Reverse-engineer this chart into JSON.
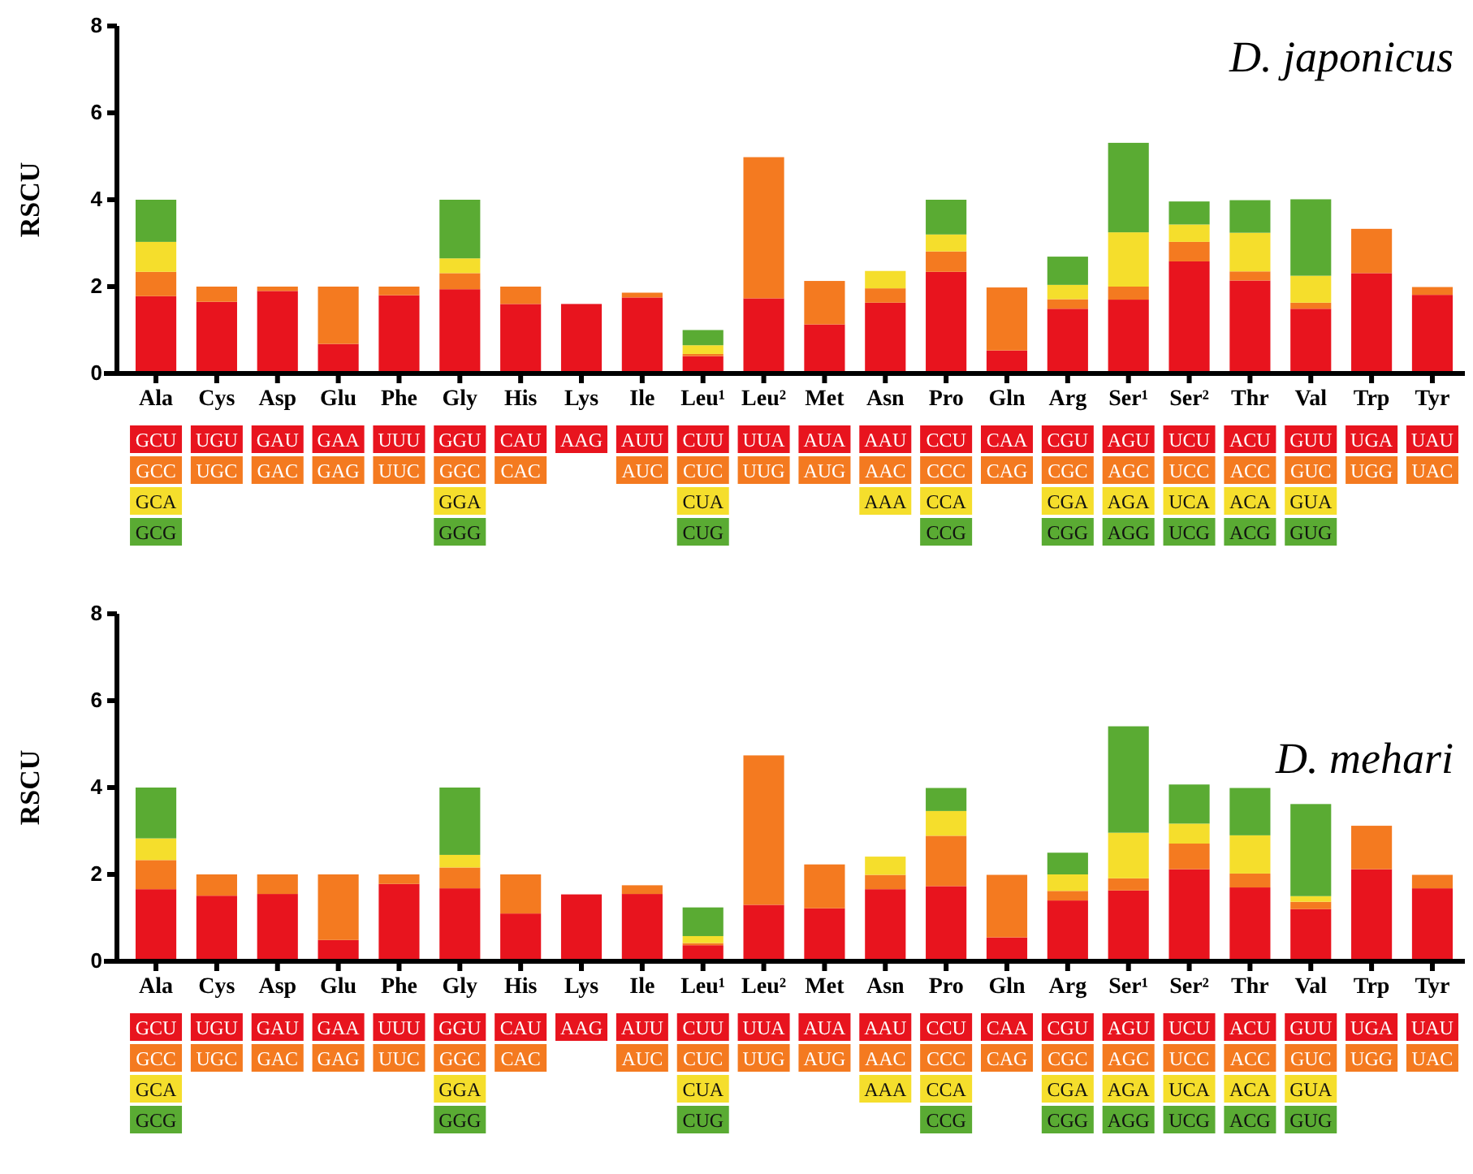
{
  "chart_data": [
    {
      "type": "bar",
      "title": "D. japonicus",
      "ylabel": "RSCU",
      "stacked": true,
      "ylim": [
        0,
        8
      ],
      "yticks": [
        0,
        2,
        4,
        6,
        8
      ],
      "categories": [
        "Ala",
        "Cys",
        "Asp",
        "Glu",
        "Phe",
        "Gly",
        "His",
        "Lys",
        "Ile",
        "Leu¹",
        "Leu²",
        "Met",
        "Asn",
        "Pro",
        "Gln",
        "Arg",
        "Ser¹",
        "Ser²",
        "Thr",
        "Val",
        "Trp",
        "Tyr"
      ],
      "series": [
        {
          "color": "#e8141e",
          "values": [
            1.78,
            1.65,
            1.9,
            0.68,
            1.8,
            1.94,
            1.6,
            1.6,
            1.75,
            0.4,
            1.73,
            1.13,
            1.63,
            2.34,
            0.53,
            1.49,
            1.7,
            2.58,
            2.14,
            1.49,
            2.31,
            1.81
          ]
        },
        {
          "color": "#f47a20",
          "values": [
            0.56,
            0.35,
            0.1,
            1.32,
            0.2,
            0.37,
            0.4,
            null,
            0.11,
            0.05,
            3.25,
            1.0,
            0.33,
            0.47,
            1.45,
            0.22,
            0.3,
            0.45,
            0.21,
            0.14,
            1.02,
            0.18
          ]
        },
        {
          "color": "#f5de2c",
          "values": [
            0.69,
            null,
            null,
            null,
            null,
            0.34,
            null,
            null,
            null,
            0.2,
            null,
            null,
            0.4,
            0.39,
            null,
            0.33,
            1.25,
            0.4,
            0.89,
            0.62,
            null,
            null
          ]
        },
        {
          "color": "#5aab33",
          "values": [
            0.97,
            null,
            null,
            null,
            null,
            1.35,
            null,
            null,
            null,
            0.35,
            null,
            null,
            null,
            0.8,
            null,
            0.65,
            2.06,
            0.53,
            0.75,
            1.76,
            null,
            null
          ]
        }
      ],
      "annotations": [
        "GCU",
        "GCC",
        "GCA",
        "GCG",
        "UGU",
        "UGC",
        "GAU",
        "GAC",
        "GAA",
        "GAG",
        "UUU",
        "UUC",
        "GGU",
        "GGC",
        "GGA",
        "GGG",
        "CAU",
        "CAC",
        "AAG",
        "AUU",
        "AUC",
        "CUU",
        "CUC",
        "CUA",
        "CUG",
        "UUA",
        "UUG",
        "AUA",
        "AUG",
        "AAU",
        "AAC",
        "AAA",
        "CCU",
        "CCC",
        "CCA",
        "CCG",
        "CAA",
        "CAG",
        "CGU",
        "CGC",
        "CGA",
        "CGG",
        "AGU",
        "AGC",
        "AGA",
        "AGG",
        "UCU",
        "UCC",
        "UCA",
        "UCG",
        "ACU",
        "ACC",
        "ACA",
        "ACG",
        "GUU",
        "GUC",
        "GUA",
        "GUG",
        "UGA",
        "UGG",
        "UAU",
        "UAC"
      ]
    },
    {
      "type": "bar",
      "title": "D. mehari",
      "ylabel": "RSCU",
      "stacked": true,
      "ylim": [
        0,
        8
      ],
      "yticks": [
        0,
        2,
        4,
        6,
        8
      ],
      "categories": [
        "Ala",
        "Cys",
        "Asp",
        "Glu",
        "Phe",
        "Gly",
        "His",
        "Lys",
        "Ile",
        "Leu¹",
        "Leu²",
        "Met",
        "Asn",
        "Pro",
        "Gln",
        "Arg",
        "Ser¹",
        "Ser²",
        "Thr",
        "Val",
        "Trp",
        "Tyr"
      ],
      "series": [
        {
          "color": "#e8141e",
          "values": [
            1.66,
            1.51,
            1.55,
            0.49,
            1.78,
            1.68,
            1.1,
            1.54,
            1.55,
            0.37,
            1.3,
            1.22,
            1.66,
            1.73,
            0.55,
            1.4,
            1.63,
            2.12,
            1.7,
            1.2,
            2.12,
            1.68
          ]
        },
        {
          "color": "#f47a20",
          "values": [
            0.67,
            0.49,
            0.45,
            1.51,
            0.22,
            0.48,
            0.9,
            null,
            0.2,
            0.05,
            3.44,
            1.01,
            0.33,
            1.16,
            1.44,
            0.22,
            0.28,
            0.59,
            0.32,
            0.17,
            1.0,
            0.31
          ]
        },
        {
          "color": "#f5de2c",
          "values": [
            0.5,
            null,
            null,
            null,
            null,
            0.29,
            null,
            null,
            null,
            0.16,
            null,
            null,
            0.42,
            0.57,
            null,
            0.38,
            1.05,
            0.46,
            0.88,
            0.13,
            null,
            null
          ]
        },
        {
          "color": "#5aab33",
          "values": [
            1.17,
            null,
            null,
            null,
            null,
            1.55,
            null,
            null,
            null,
            0.66,
            null,
            null,
            null,
            0.53,
            null,
            0.5,
            2.45,
            0.9,
            1.09,
            2.12,
            null,
            null
          ]
        }
      ],
      "annotations": [
        "GCU",
        "GCC",
        "GCA",
        "GCG",
        "UGU",
        "UGC",
        "GAU",
        "GAC",
        "GAA",
        "GAG",
        "UUU",
        "UUC",
        "GGU",
        "GGC",
        "GGA",
        "GGG",
        "CAU",
        "CAC",
        "AAG",
        "AUU",
        "AUC",
        "CUU",
        "CUC",
        "CUA",
        "CUG",
        "UUA",
        "UUG",
        "AUA",
        "AUG",
        "AAU",
        "AAC",
        "AAA",
        "CCU",
        "CCC",
        "CCA",
        "CCG",
        "CAA",
        "CAG",
        "CGU",
        "CGC",
        "CGA",
        "CGG",
        "AGU",
        "AGC",
        "AGA",
        "AGG",
        "UCU",
        "UCC",
        "UCA",
        "UCG",
        "ACU",
        "ACC",
        "ACA",
        "ACG",
        "GUU",
        "GUC",
        "GUA",
        "GUG",
        "UGA",
        "UGG",
        "UAU",
        "UAC"
      ]
    }
  ]
}
